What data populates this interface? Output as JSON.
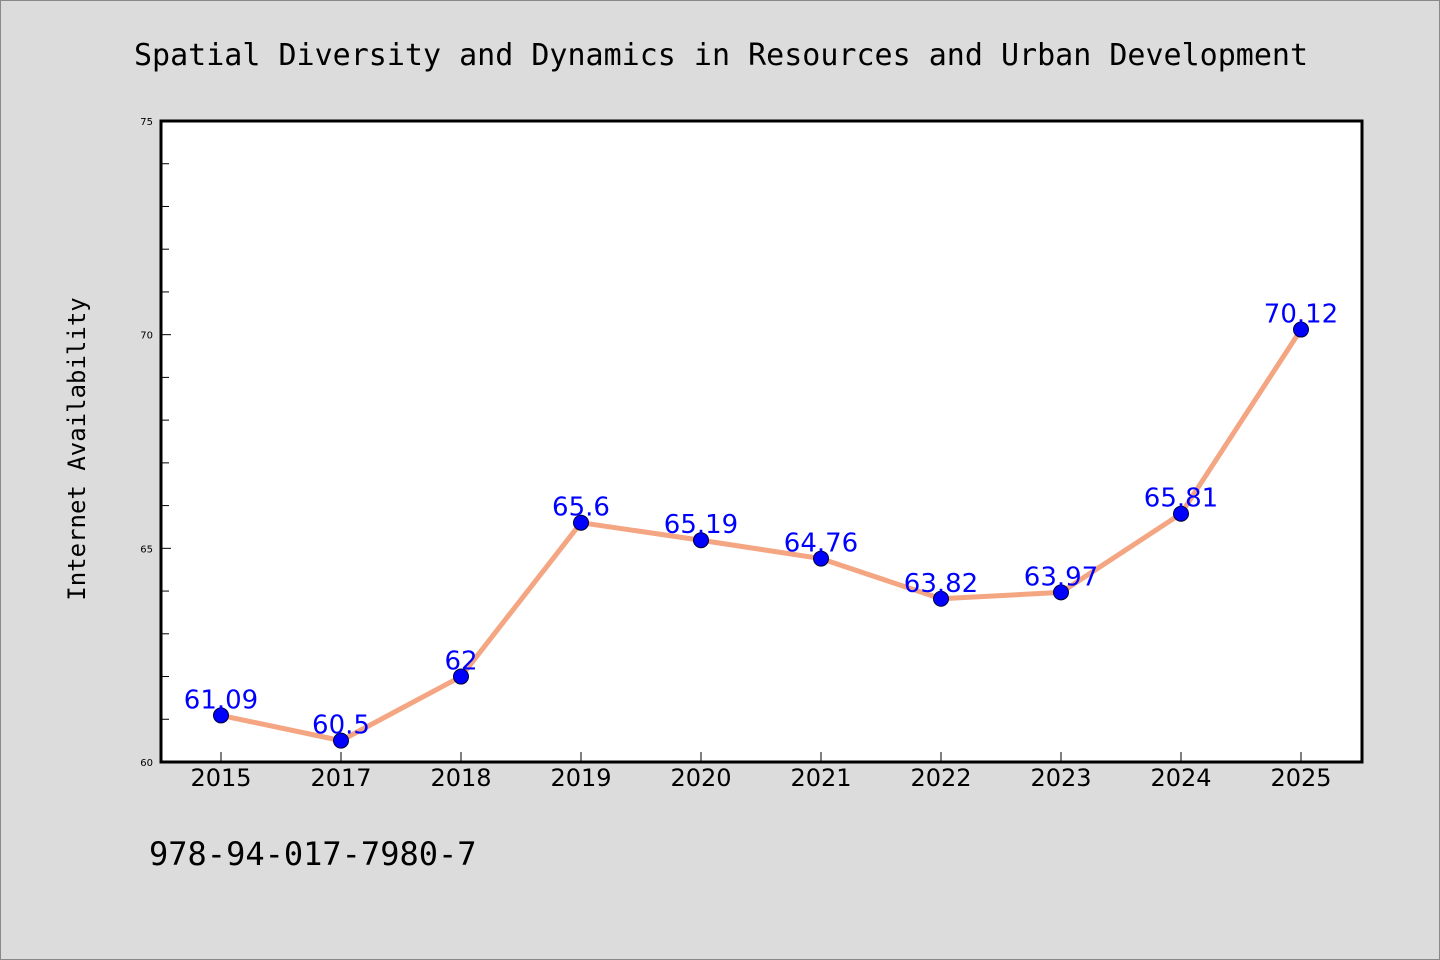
{
  "chart_data": {
    "type": "line",
    "title": "Spatial Diversity and Dynamics in Resources and Urban Development",
    "xlabel": "",
    "ylabel": "Internet Availability",
    "categories": [
      "2015",
      "2017",
      "2018",
      "2019",
      "2020",
      "2021",
      "2022",
      "2023",
      "2024",
      "2025"
    ],
    "series": [
      {
        "values": [
          61.09,
          60.5,
          62,
          65.6,
          65.19,
          64.76,
          63.82,
          63.97,
          65.81,
          70.12
        ],
        "labels": [
          "61.09",
          "60.5",
          "62",
          "65.6",
          "65.19",
          "64.76",
          "63.82",
          "63.97",
          "65.81",
          "70.12"
        ],
        "line_color": "#f4a582",
        "marker_color": "#0000ff"
      }
    ],
    "ylim": [
      60,
      75
    ],
    "yticks": [
      60,
      65,
      70,
      75
    ],
    "ytick_labels": [
      "60",
      "65",
      "70",
      "75"
    ],
    "grid": false,
    "legend": "none"
  },
  "footnote": "978-94-017-7980-7",
  "colors": {
    "background": "#dcdcdc",
    "plot_background": "#ffffff",
    "line": "#f4a582",
    "marker": "#0000ff",
    "data_label": "#0000ff"
  }
}
